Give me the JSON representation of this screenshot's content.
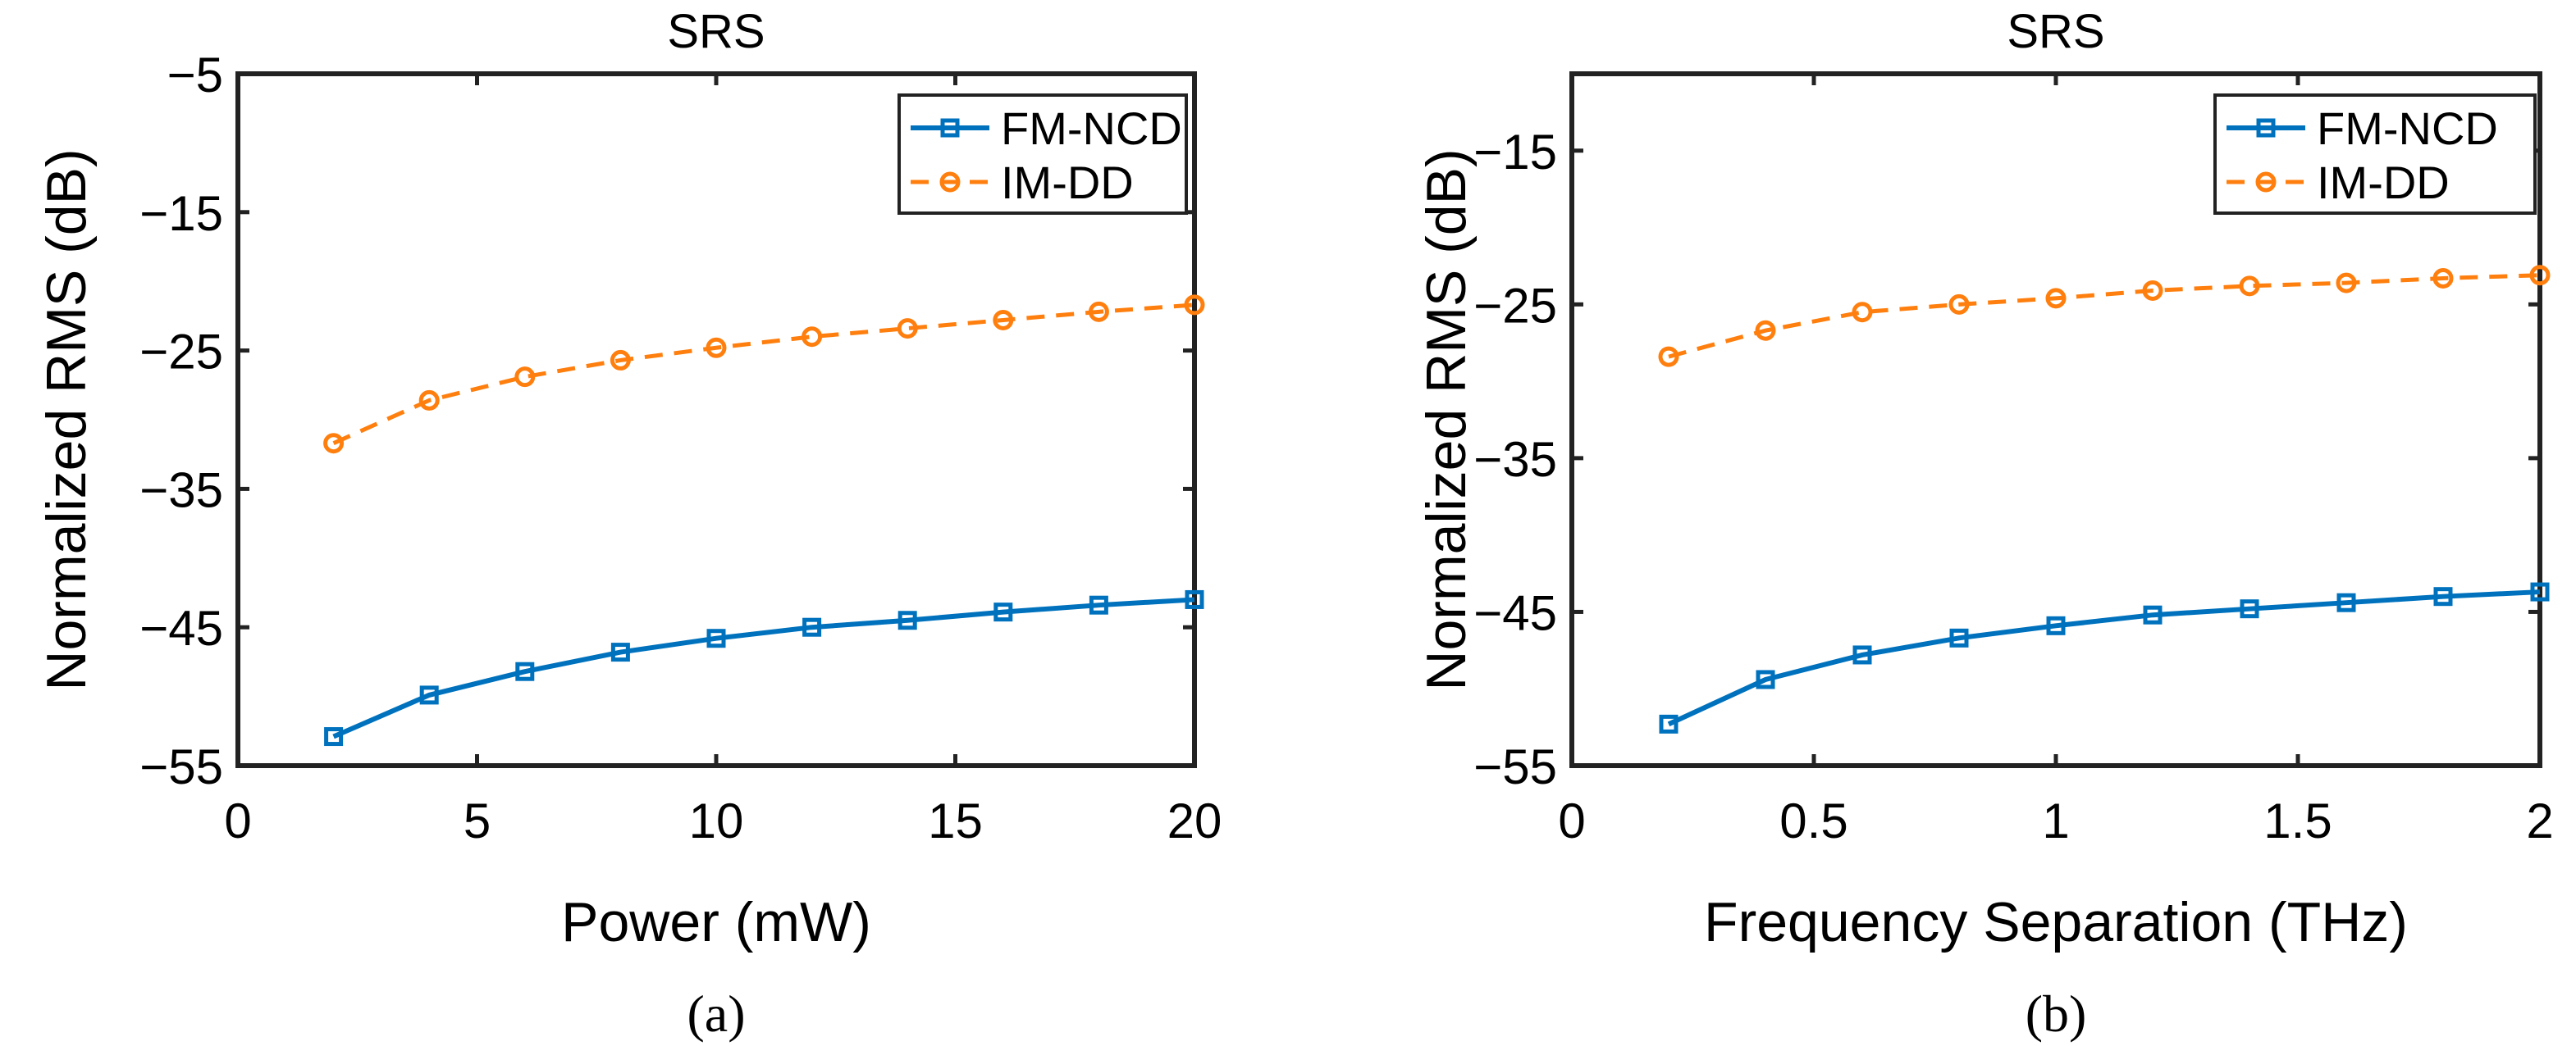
{
  "chart_data": [
    {
      "type": "line",
      "panel_label": "(a)",
      "title": "SRS",
      "xlabel": "Power (mW)",
      "ylabel": "Normalized RMS (dB)",
      "xlim": [
        0,
        20
      ],
      "ylim": [
        -55,
        -5
      ],
      "xticks": [
        0,
        5,
        10,
        15,
        20
      ],
      "yticks": [
        -55,
        -45,
        -35,
        -25,
        -15,
        -5
      ],
      "grid": false,
      "legend_position": "top-right",
      "x": [
        2,
        4,
        6,
        8,
        10,
        12,
        14,
        16,
        18,
        20
      ],
      "series": [
        {
          "name": "FM-NCD",
          "color": "#0072BD",
          "style": "solid",
          "marker": "square",
          "values": [
            -52.9,
            -49.9,
            -48.2,
            -46.8,
            -45.8,
            -45.0,
            -44.5,
            -43.9,
            -43.4,
            -43.0
          ]
        },
        {
          "name": "IM-DD",
          "color": "#FF7F0E",
          "style": "dashed",
          "marker": "circle",
          "values": [
            -31.7,
            -28.6,
            -26.9,
            -25.7,
            -24.8,
            -24.0,
            -23.4,
            -22.8,
            -22.2,
            -21.7
          ]
        }
      ]
    },
    {
      "type": "line",
      "panel_label": "(b)",
      "title": "SRS",
      "xlabel": "Frequency Separation (THz)",
      "ylabel": "Normalized RMS (dB)",
      "xlim": [
        0,
        2
      ],
      "ylim": [
        -55,
        -10
      ],
      "xticks": [
        0,
        0.5,
        1,
        1.5,
        2
      ],
      "yticks": [
        -55,
        -45,
        -35,
        -25,
        -15
      ],
      "grid": false,
      "legend_position": "top-right",
      "x": [
        0.2,
        0.4,
        0.6,
        0.8,
        1.0,
        1.2,
        1.4,
        1.6,
        1.8,
        2.0
      ],
      "series": [
        {
          "name": "FM-NCD",
          "color": "#0072BD",
          "style": "solid",
          "marker": "square",
          "values": [
            -52.3,
            -49.4,
            -47.8,
            -46.7,
            -45.9,
            -45.2,
            -44.8,
            -44.4,
            -44.0,
            -43.7
          ]
        },
        {
          "name": "IM-DD",
          "color": "#FF7F0E",
          "style": "dashed",
          "marker": "circle",
          "values": [
            -28.4,
            -26.7,
            -25.5,
            -25.0,
            -24.6,
            -24.1,
            -23.8,
            -23.6,
            -23.3,
            -23.1
          ]
        }
      ]
    }
  ]
}
